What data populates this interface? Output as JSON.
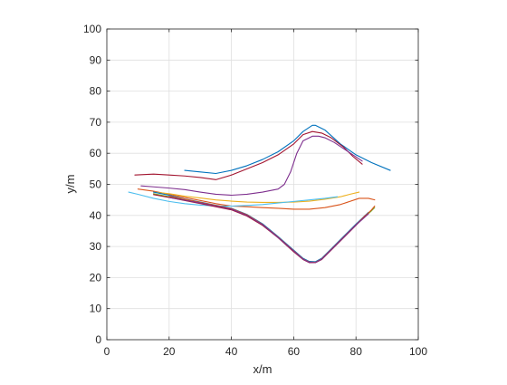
{
  "chart_data": {
    "type": "line",
    "title": "",
    "xlabel": "x/m",
    "ylabel": "y/m",
    "xlim": [
      0,
      100
    ],
    "ylim": [
      0,
      100
    ],
    "xticks": [
      0,
      20,
      40,
      60,
      80,
      100
    ],
    "yticks": [
      0,
      10,
      20,
      30,
      40,
      50,
      60,
      70,
      80,
      90,
      100
    ],
    "grid": true,
    "legend": "none",
    "series": [
      {
        "color": "#0072BD",
        "x": [
          25,
          30,
          35,
          40,
          45,
          50,
          55,
          60,
          63,
          66,
          67,
          70,
          75,
          80,
          85,
          91
        ],
        "y": [
          54.5,
          54,
          53.5,
          54.5,
          56,
          58,
          60.5,
          64,
          67,
          69,
          69,
          67.5,
          63,
          59.5,
          57,
          54.5
        ]
      },
      {
        "color": "#A2142F",
        "x": [
          9,
          15,
          20,
          25,
          30,
          35,
          40,
          45,
          50,
          55,
          60,
          63,
          66,
          69,
          72,
          76,
          79,
          82
        ],
        "y": [
          53,
          53.3,
          53,
          52.7,
          52.2,
          51.5,
          53,
          55,
          57,
          59.5,
          63,
          66,
          67,
          66.5,
          65,
          62,
          59,
          56.5
        ]
      },
      {
        "color": "#7E2F8E",
        "x": [
          11,
          15,
          20,
          25,
          30,
          35,
          40,
          45,
          50,
          55,
          57,
          59,
          61,
          63,
          66,
          68,
          70,
          73,
          76,
          79,
          82
        ],
        "y": [
          49.5,
          49.2,
          48.8,
          48.3,
          47.5,
          46.8,
          46.5,
          46.8,
          47.5,
          48.5,
          50,
          54,
          60,
          64,
          65.5,
          65.5,
          65,
          63.5,
          61.5,
          59.5,
          57.5
        ]
      },
      {
        "color": "#D95319",
        "x": [
          10,
          15,
          20,
          25,
          30,
          35,
          40,
          45,
          50,
          55,
          60,
          65,
          70,
          75,
          78,
          81,
          84,
          86
        ],
        "y": [
          48.5,
          47.8,
          46.8,
          45.8,
          44.8,
          43.8,
          43,
          42.8,
          42.5,
          42.3,
          42,
          42,
          42.5,
          43.5,
          44.5,
          45.5,
          45.5,
          45
        ]
      },
      {
        "color": "#EDB120",
        "x": [
          15,
          20,
          25,
          30,
          35,
          40,
          45,
          50,
          55,
          60,
          65,
          70,
          75,
          78,
          81
        ],
        "y": [
          47.5,
          47,
          46.2,
          45.6,
          45,
          44.6,
          44.3,
          44.2,
          44.2,
          44.3,
          44.6,
          45.2,
          46,
          46.8,
          47.5
        ]
      },
      {
        "color": "#4DBEEE",
        "x": [
          7,
          10,
          15,
          20,
          25,
          30,
          35,
          40,
          45,
          50,
          55,
          60,
          65,
          70,
          74
        ],
        "y": [
          47.5,
          46.8,
          45.5,
          44.5,
          43.8,
          43.3,
          43,
          43,
          43.2,
          43.5,
          44,
          44.5,
          45,
          45.5,
          46
        ]
      },
      {
        "color": "#77AC30",
        "x": [
          15,
          20,
          25,
          30,
          35,
          40,
          45,
          50,
          55,
          60,
          63,
          65,
          67,
          69,
          72,
          75,
          80,
          85,
          86
        ],
        "y": [
          47,
          46,
          45,
          44,
          43,
          42,
          40,
          37,
          33,
          28.5,
          26,
          25,
          25,
          26,
          29,
          32,
          37,
          41.5,
          42.5
        ]
      },
      {
        "color": "#0072BD",
        "x": [
          15,
          20,
          25,
          30,
          35,
          40,
          45,
          50,
          55,
          60,
          63,
          65,
          67,
          69,
          72,
          75,
          80,
          84
        ],
        "y": [
          47.5,
          46.5,
          45.3,
          44.3,
          43.3,
          42.3,
          40.3,
          37.3,
          33.2,
          28.8,
          26.2,
          25.2,
          25.1,
          26.2,
          29.2,
          32.2,
          37.2,
          41
        ]
      },
      {
        "color": "#A2142F",
        "x": [
          15,
          20,
          25,
          30,
          35,
          40,
          45,
          50,
          55,
          60,
          63,
          65,
          67,
          69,
          72,
          75,
          80,
          83
        ],
        "y": [
          46.7,
          45.8,
          44.8,
          43.8,
          42.8,
          41.8,
          39.8,
          36.8,
          32.8,
          28.3,
          25.8,
          24.8,
          24.8,
          25.8,
          28.8,
          31.8,
          36.8,
          40
        ]
      },
      {
        "color": "#D95319",
        "x": [
          20,
          25,
          30,
          35,
          40,
          45,
          50,
          55,
          60,
          63,
          65,
          67,
          69,
          72,
          75,
          80,
          85,
          86
        ],
        "y": [
          46.2,
          45.2,
          44.2,
          43.2,
          42.2,
          40.2,
          37.1,
          33,
          28.6,
          26,
          25,
          24.9,
          26,
          29,
          32,
          37,
          41.8,
          43
        ]
      },
      {
        "color": "#7E2F8E",
        "x": [
          20,
          25,
          30,
          35,
          40,
          45,
          50,
          55,
          60,
          63,
          65,
          67,
          69,
          72,
          75,
          80,
          84
        ],
        "y": [
          45.8,
          44.9,
          44,
          43,
          42,
          40,
          37,
          32.9,
          28.5,
          25.9,
          24.9,
          24.8,
          25.9,
          28.9,
          31.9,
          36.9,
          40.5
        ]
      }
    ]
  }
}
